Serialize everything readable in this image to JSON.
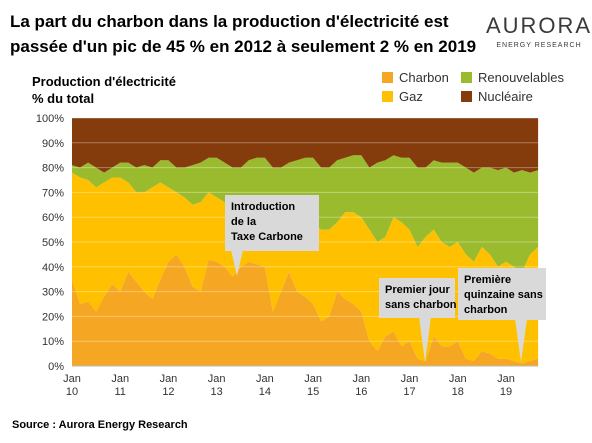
{
  "chart_data": {
    "type": "stacked-area",
    "title": [
      "La part du charbon dans la production d'électricité est",
      "passée d'un pic de 45 % en 2012 à seulement 2 % en 2019"
    ],
    "logo": {
      "name": "AURORA",
      "tagline": "ENERGY RESEARCH"
    },
    "ylabel": [
      "Production d'électricité",
      "% du total"
    ],
    "source": "Source : Aurora Energy Research",
    "categories": [
      "Jan 10",
      null,
      null,
      null,
      null,
      null,
      "Jan 11",
      null,
      null,
      null,
      null,
      null,
      "Jan 12",
      null,
      null,
      null,
      null,
      null,
      "Jan 13",
      null,
      null,
      null,
      null,
      null,
      "Jan 14",
      null,
      null,
      null,
      null,
      null,
      "Jan 15",
      null,
      null,
      null,
      null,
      null,
      "Jan 16",
      null,
      null,
      null,
      null,
      null,
      "Jan 17",
      null,
      null,
      null,
      null,
      null,
      "Jan 18",
      null,
      null,
      null,
      null,
      null,
      "Jan 19",
      null,
      null,
      null,
      null
    ],
    "series": [
      {
        "name": "Charbon",
        "color": "#f5a623",
        "values": [
          35,
          25,
          26,
          22,
          28,
          33,
          30,
          38,
          34,
          30,
          27,
          35,
          42,
          45,
          40,
          32,
          30,
          43,
          42,
          40,
          36,
          40,
          42,
          41,
          40,
          22,
          30,
          38,
          30,
          28,
          25,
          18,
          20,
          30,
          27,
          25,
          22,
          10,
          6,
          12,
          14,
          8,
          10,
          3,
          2,
          12,
          8,
          8,
          10,
          3,
          2,
          6,
          5,
          3,
          3,
          2,
          1,
          2,
          3
        ]
      },
      {
        "name": "Gaz",
        "color": "#ffc000",
        "values": [
          43,
          51,
          49,
          50,
          46,
          43,
          46,
          36,
          36,
          40,
          45,
          39,
          30,
          25,
          28,
          33,
          36,
          27,
          26,
          26,
          28,
          20,
          22,
          25,
          22,
          38,
          28,
          17,
          30,
          32,
          33,
          37,
          35,
          28,
          35,
          37,
          38,
          45,
          44,
          40,
          46,
          50,
          45,
          45,
          50,
          43,
          42,
          40,
          40,
          42,
          40,
          42,
          40,
          37,
          39,
          38,
          37,
          43,
          45
        ]
      },
      {
        "name": "Renouvelables",
        "color": "#9bbb2f",
        "values": [
          3,
          4,
          7,
          8,
          4,
          4,
          6,
          8,
          10,
          11,
          8,
          9,
          11,
          10,
          12,
          16,
          16,
          14,
          16,
          16,
          16,
          20,
          19,
          18,
          22,
          20,
          22,
          27,
          23,
          24,
          26,
          25,
          25,
          25,
          22,
          23,
          25,
          25,
          32,
          31,
          25,
          26,
          29,
          32,
          28,
          28,
          32,
          34,
          32,
          35,
          36,
          32,
          35,
          39,
          38,
          38,
          41,
          33,
          31
        ]
      },
      {
        "name": "Nucléaire",
        "color": "#843c0c",
        "values": [
          19,
          20,
          18,
          20,
          22,
          20,
          18,
          18,
          20,
          19,
          20,
          17,
          17,
          20,
          20,
          19,
          18,
          16,
          16,
          18,
          20,
          20,
          17,
          16,
          16,
          20,
          20,
          18,
          17,
          16,
          16,
          20,
          20,
          17,
          16,
          15,
          15,
          20,
          18,
          17,
          15,
          16,
          16,
          20,
          20,
          17,
          18,
          18,
          18,
          20,
          22,
          20,
          20,
          21,
          20,
          22,
          21,
          22,
          21
        ]
      }
    ],
    "legend_order": [
      0,
      2,
      1,
      3
    ],
    "ylim": [
      0,
      100
    ],
    "yticks": [
      {
        "value": 0,
        "label": "0%"
      },
      {
        "value": 10,
        "label": "10%"
      },
      {
        "value": 20,
        "label": "20%"
      },
      {
        "value": 30,
        "label": "30%"
      },
      {
        "value": 40,
        "label": "40%"
      },
      {
        "value": 50,
        "label": "50%"
      },
      {
        "value": 60,
        "label": "60%"
      },
      {
        "value": 70,
        "label": "70%"
      },
      {
        "value": 80,
        "label": "80%"
      },
      {
        "value": 90,
        "label": "90%"
      },
      {
        "value": 100,
        "label": "100%"
      }
    ],
    "grid": true,
    "annotations": [
      {
        "lines": [
          "Introduction",
          "de la",
          "Taxe Carbone"
        ],
        "at": 27
      },
      {
        "lines": [
          "Premier jour",
          "sans charbon"
        ],
        "at": 44
      },
      {
        "lines": [
          "Première",
          "quinzaine sans",
          "charbon"
        ],
        "at": 56
      }
    ]
  }
}
